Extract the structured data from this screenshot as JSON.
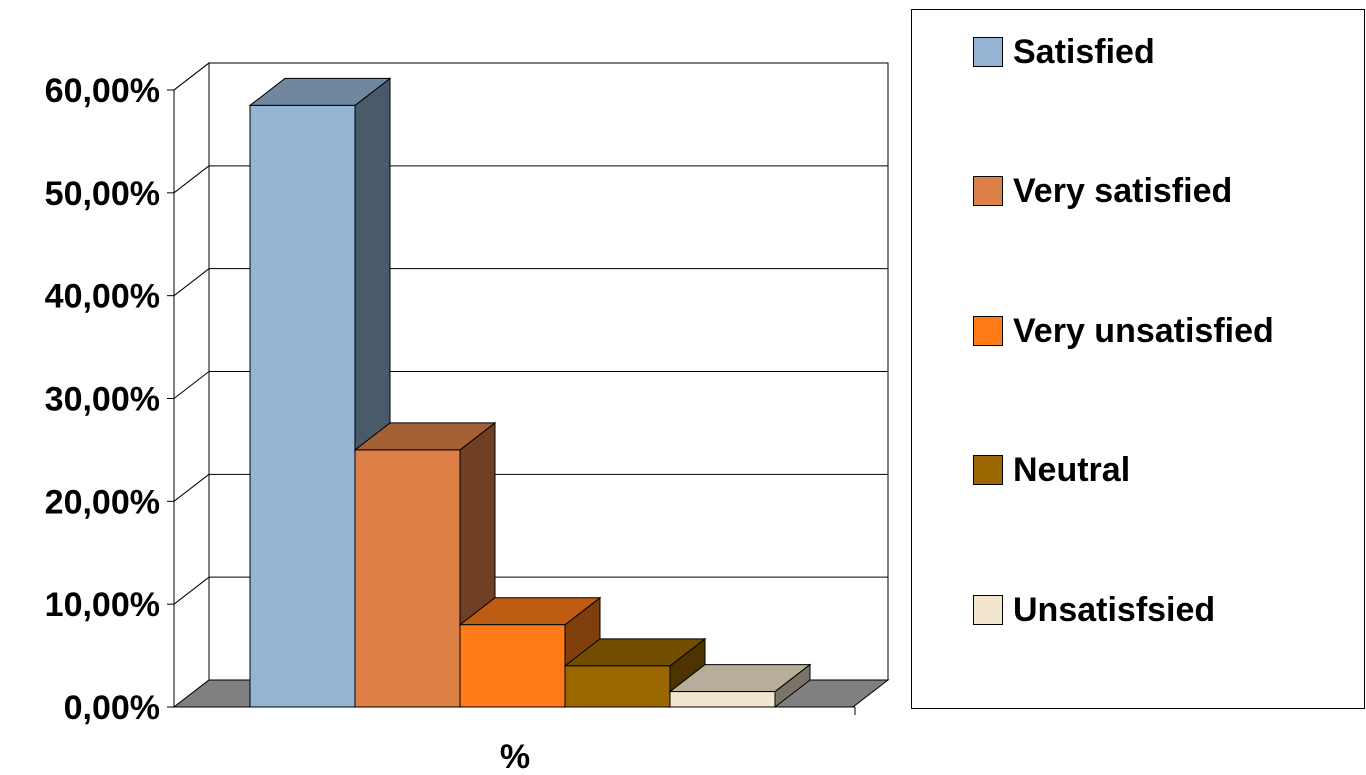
{
  "chart_data": {
    "type": "bar",
    "style": "3d-clustered-column",
    "xlabel": "%",
    "ylim": [
      0,
      60
    ],
    "yticks": [
      0,
      10,
      20,
      30,
      40,
      50,
      60
    ],
    "ytick_labels": [
      "0,00%",
      "10,00%",
      "20,00%",
      "30,00%",
      "40,00%",
      "50,00%",
      "60,00%"
    ],
    "grid": true,
    "legend_position": "right",
    "series": [
      {
        "name": "Satisfied",
        "value": 58.5,
        "color": "#95B4D3"
      },
      {
        "name": "Very satisfied",
        "value": 25.0,
        "color": "#DD8048"
      },
      {
        "name": "Very unsatisfied",
        "value": 8.0,
        "color": "#FF7B1A"
      },
      {
        "name": "Neutral",
        "value": 4.0,
        "color": "#996600"
      },
      {
        "name": "Unsatisfsied",
        "value": 1.5,
        "color": "#F2E6CF"
      }
    ]
  }
}
